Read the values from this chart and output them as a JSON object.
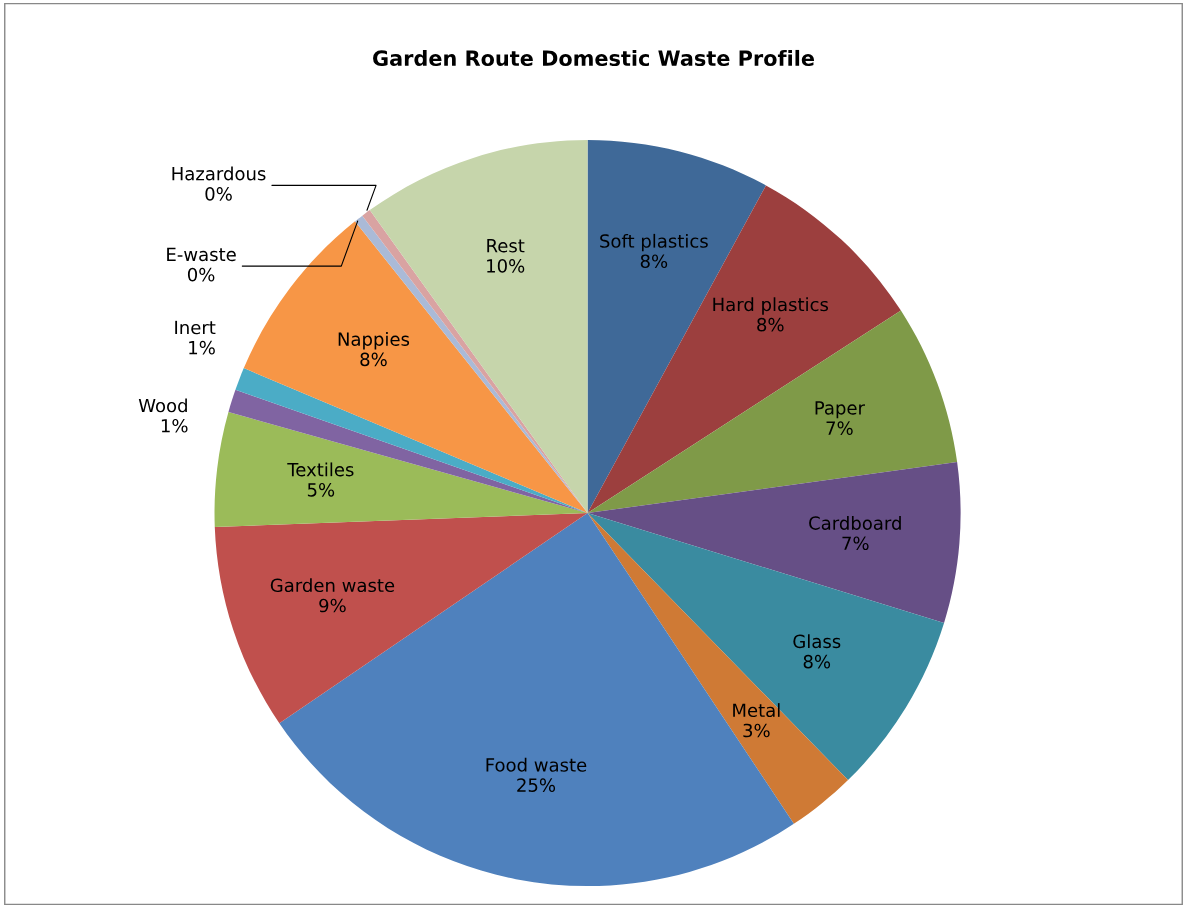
{
  "chart_data": {
    "type": "pie",
    "title": "Garden Route Domestic Waste Profile",
    "categories": [
      "Soft plastics",
      "Hard plastics",
      "Paper",
      "Cardboard",
      "Glass",
      "Metal",
      "Food waste",
      "Garden waste",
      "Textiles",
      "Wood",
      "Inert",
      "Nappies",
      "E-waste",
      "Hazardous",
      "Rest"
    ],
    "values": [
      8,
      8,
      7,
      7,
      8,
      3,
      25,
      9,
      5,
      1,
      1,
      8,
      0.4,
      0.4,
      10
    ],
    "value_labels": [
      "8%",
      "8%",
      "7%",
      "7%",
      "8%",
      "3%",
      "25%",
      "9%",
      "5%",
      "1%",
      "1%",
      "8%",
      "0%",
      "0%",
      "10%"
    ],
    "colors": [
      "#3f6998",
      "#9c3f3e",
      "#7f9a48",
      "#664f86",
      "#3a8ba0",
      "#cf7a35",
      "#4f81bd",
      "#c0504d",
      "#9bbb59",
      "#8064a2",
      "#4bacc6",
      "#f79646",
      "#aabad7",
      "#d9a3a2",
      "#c6d5ab"
    ],
    "legend": false
  }
}
